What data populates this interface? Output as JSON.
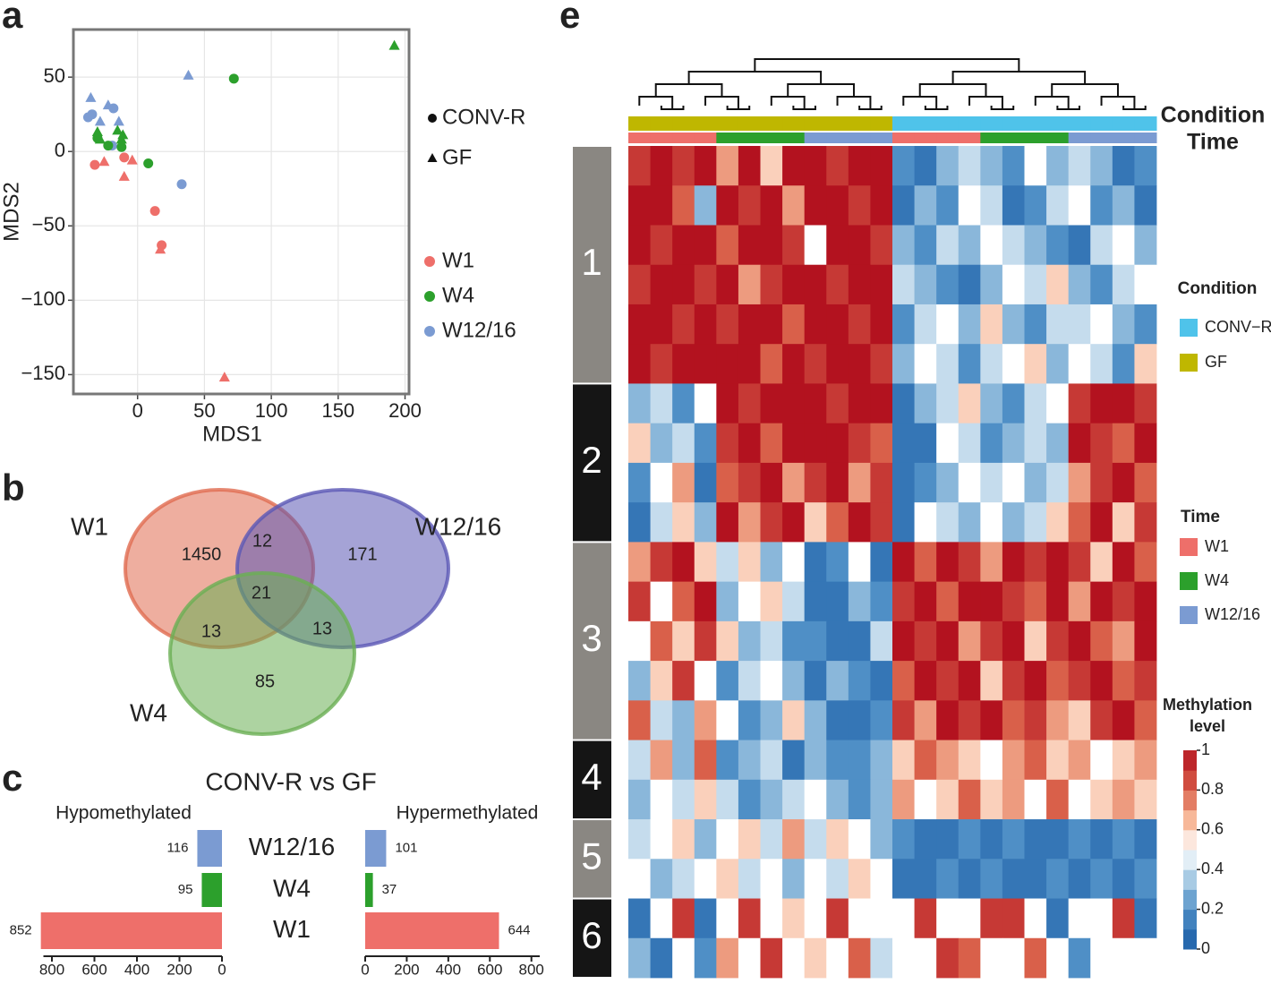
{
  "chart_data": [
    {
      "type": "scatter",
      "panel": "a",
      "xlabel": "MDS1",
      "ylabel": "MDS2",
      "xlim": [
        -48,
        203
      ],
      "ylim": [
        -163,
        82
      ],
      "xticks": [
        0,
        50,
        100,
        150,
        200
      ],
      "yticks": [
        {
          "value": -150,
          "label": "−150"
        },
        {
          "value": -100,
          "label": "−100"
        },
        {
          "value": -50,
          "label": "−50"
        },
        0,
        50
      ],
      "grid": true,
      "shape_legend": [
        {
          "name": "CONV-R",
          "shape": "circle"
        },
        {
          "name": "GF",
          "shape": "triangle"
        }
      ],
      "color_legend": [
        {
          "name": "W1",
          "color": "#ee6f6a"
        },
        {
          "name": "W4",
          "color": "#2ca02c"
        },
        {
          "name": "W12/16",
          "color": "#7b9bd2"
        }
      ],
      "points": {
        "x": [
          -35,
          -22,
          -28,
          -14,
          38,
          -37,
          -34,
          -18,
          -19,
          33,
          -30,
          -22,
          -12,
          8,
          72,
          -30,
          -28,
          -15,
          -11,
          -12,
          192,
          -32,
          -10,
          13,
          18,
          -25,
          -4,
          -10,
          17,
          65
        ],
        "y": [
          36,
          31,
          20,
          20,
          51,
          23,
          25,
          29,
          4,
          -22,
          9,
          4,
          3,
          -8,
          49,
          13,
          8,
          14,
          11,
          8,
          71,
          -9,
          -4,
          -40,
          -63,
          -7,
          -6,
          -17,
          -66,
          -152
        ],
        "shape": [
          1,
          1,
          1,
          1,
          1,
          0,
          0,
          0,
          0,
          0,
          0,
          0,
          0,
          0,
          0,
          1,
          1,
          1,
          1,
          1,
          1,
          0,
          0,
          0,
          0,
          1,
          1,
          1,
          1,
          1
        ],
        "color": [
          2,
          2,
          2,
          2,
          2,
          2,
          2,
          2,
          2,
          2,
          1,
          1,
          1,
          1,
          1,
          1,
          1,
          1,
          1,
          1,
          1,
          0,
          0,
          0,
          0,
          0,
          0,
          0,
          0,
          0
        ]
      }
    },
    {
      "type": "venn",
      "panel": "b",
      "sets": [
        {
          "name": "W1",
          "color": "#e06b50"
        },
        {
          "name": "W12/16",
          "color": "#5b57b5"
        },
        {
          "name": "W4",
          "color": "#6aaf54"
        }
      ],
      "regions": [
        {
          "sets": [
            0
          ],
          "value": 1450
        },
        {
          "sets": [
            0,
            1
          ],
          "value": 12
        },
        {
          "sets": [
            1
          ],
          "value": 171
        },
        {
          "sets": [
            0,
            1,
            2
          ],
          "value": 21
        },
        {
          "sets": [
            0,
            2
          ],
          "value": 13
        },
        {
          "sets": [
            1,
            2
          ],
          "value": 13
        },
        {
          "sets": [
            2
          ],
          "value": 85
        }
      ]
    },
    {
      "type": "bar",
      "panel": "c",
      "title": "CONV-R vs GF",
      "categories": [
        "W12/16",
        "W4",
        "W1"
      ],
      "colors": [
        "#7b9bd2",
        "#2ca02c",
        "#ee6f6a"
      ],
      "series": [
        {
          "name": "Hypomethylated",
          "values": [
            116,
            95,
            852
          ]
        },
        {
          "name": "Hypermethylated",
          "values": [
            101,
            37,
            644
          ]
        }
      ],
      "xlim": [
        0,
        840
      ],
      "xticks": [
        0,
        200,
        400,
        600,
        800
      ]
    },
    {
      "type": "heatmap",
      "panel": "e",
      "annotation_rows": [
        "Condition",
        "Time"
      ],
      "condition_legend": {
        "title": "Condition",
        "items": [
          {
            "name": "CONV−R",
            "color": "#4fc3ea"
          },
          {
            "name": "GF",
            "color": "#bfb700"
          }
        ]
      },
      "time_legend": {
        "title": "Time",
        "items": [
          {
            "name": "W1",
            "color": "#ee6f6a"
          },
          {
            "name": "W4",
            "color": "#2ca02c"
          },
          {
            "name": "W12/16",
            "color": "#7b9bd2"
          }
        ]
      },
      "colorbar": {
        "title": [
          "Methylation",
          "level"
        ],
        "ticks": [
          0,
          0.2,
          0.4,
          0.6,
          0.8,
          1
        ],
        "stops": [
          [
            0,
            "#1a5ca6"
          ],
          [
            0.2,
            "#4f8fc6"
          ],
          [
            0.35,
            "#a8cbe4"
          ],
          [
            0.5,
            "#ffffff"
          ],
          [
            0.65,
            "#f7b899"
          ],
          [
            0.8,
            "#d9604a"
          ],
          [
            1,
            "#b3121f"
          ]
        ]
      },
      "column_condition": [
        1,
        1,
        1,
        1,
        1,
        1,
        1,
        1,
        1,
        1,
        1,
        1,
        0,
        0,
        0,
        0,
        0,
        0,
        0,
        0,
        0,
        0,
        0,
        0
      ],
      "column_time": [
        0,
        0,
        0,
        0,
        1,
        1,
        1,
        1,
        2,
        2,
        2,
        2,
        0,
        0,
        0,
        0,
        1,
        1,
        1,
        1,
        2,
        2,
        2,
        2
      ],
      "clusters": [
        {
          "label": "1",
          "color": "#8a8782",
          "rows": [
            [
              0.9,
              1,
              0.9,
              1,
              0.7,
              1,
              0.6,
              1,
              1,
              0.9,
              1,
              1,
              0.2,
              0.1,
              0.3,
              0.4,
              0.3,
              0.2,
              0.5,
              0.3,
              0.4,
              0.3,
              0.1,
              0.2
            ],
            [
              1,
              1,
              0.8,
              0.3,
              1,
              0.9,
              1,
              0.7,
              1,
              1,
              0.9,
              1,
              0.1,
              0.3,
              0.2,
              0.5,
              0.4,
              0.1,
              0.2,
              0.4,
              0.5,
              0.2,
              0.3,
              0.1
            ],
            [
              1,
              0.9,
              1,
              1,
              0.8,
              1,
              1,
              0.9,
              0.5,
              1,
              1,
              0.9,
              0.3,
              0.2,
              0.4,
              0.3,
              0.5,
              0.4,
              0.3,
              0.2,
              0.1,
              0.4,
              0.5,
              0.3
            ],
            [
              0.9,
              1,
              1,
              0.9,
              1,
              0.7,
              0.9,
              1,
              1,
              0.9,
              1,
              1,
              0.4,
              0.3,
              0.2,
              0.1,
              0.3,
              0.5,
              0.4,
              0.6,
              0.3,
              0.2,
              0.4,
              0.5
            ],
            [
              1,
              1,
              0.9,
              1,
              0.9,
              1,
              1,
              0.8,
              1,
              1,
              0.9,
              1,
              0.2,
              0.4,
              0.5,
              0.3,
              0.6,
              0.3,
              0.2,
              0.4,
              0.4,
              0.5,
              0.3,
              0.2
            ],
            [
              1,
              0.9,
              1,
              1,
              1,
              1,
              0.8,
              1,
              0.9,
              1,
              1,
              0.9,
              0.3,
              0.5,
              0.4,
              0.2,
              0.4,
              0.5,
              0.6,
              0.3,
              0.5,
              0.4,
              0.2,
              0.6
            ]
          ]
        },
        {
          "label": "2",
          "color": "#151515",
          "rows": [
            [
              0.3,
              0.4,
              0.2,
              0.5,
              1,
              0.9,
              1,
              1,
              1,
              0.9,
              1,
              1,
              0.1,
              0.3,
              0.4,
              0.6,
              0.3,
              0.2,
              0.4,
              0.5,
              0.9,
              1,
              1,
              0.9
            ],
            [
              0.6,
              0.3,
              0.4,
              0.2,
              0.9,
              1,
              0.8,
              1,
              1,
              1,
              0.9,
              0.8,
              0.1,
              0.1,
              0.5,
              0.4,
              0.2,
              0.3,
              0.4,
              0.3,
              1,
              0.9,
              0.8,
              1
            ],
            [
              0.2,
              0.5,
              0.7,
              0.1,
              0.8,
              0.9,
              1,
              0.7,
              0.9,
              1,
              0.7,
              0.9,
              0.1,
              0.2,
              0.3,
              0.5,
              0.4,
              0.5,
              0.3,
              0.4,
              0.7,
              0.9,
              1,
              0.8
            ],
            [
              0.1,
              0.4,
              0.6,
              0.3,
              1,
              0.7,
              0.9,
              1,
              0.6,
              0.8,
              1,
              0.9,
              0.1,
              0.5,
              0.4,
              0.3,
              0.5,
              0.3,
              0.4,
              0.6,
              0.8,
              1,
              0.6,
              0.9
            ]
          ]
        },
        {
          "label": "3",
          "color": "#8a8782",
          "rows": [
            [
              0.7,
              0.9,
              1,
              0.6,
              0.4,
              0.6,
              0.3,
              0.5,
              0.1,
              0.2,
              0.5,
              0.1,
              1,
              0.8,
              1,
              0.9,
              0.7,
              1,
              0.9,
              1,
              0.9,
              0.6,
              1,
              0.8
            ],
            [
              0.9,
              0.5,
              0.8,
              1,
              0.3,
              0.5,
              0.6,
              0.4,
              0.1,
              0.1,
              0.3,
              0.2,
              0.9,
              1,
              0.8,
              1,
              1,
              0.9,
              0.8,
              1,
              0.7,
              1,
              0.9,
              1
            ],
            [
              0.5,
              0.8,
              0.6,
              0.9,
              0.6,
              0.3,
              0.4,
              0.2,
              0.2,
              0.1,
              0.1,
              0.4,
              1,
              0.9,
              1,
              0.7,
              0.9,
              1,
              0.6,
              0.9,
              1,
              0.8,
              0.7,
              1
            ],
            [
              0.3,
              0.6,
              0.9,
              0.5,
              0.2,
              0.4,
              0.5,
              0.3,
              0.1,
              0.3,
              0.2,
              0.1,
              0.8,
              1,
              0.9,
              1,
              0.6,
              0.9,
              1,
              0.8,
              0.9,
              1,
              0.8,
              0.9
            ],
            [
              0.8,
              0.4,
              0.3,
              0.7,
              0.5,
              0.2,
              0.3,
              0.6,
              0.3,
              0.1,
              0.1,
              0.2,
              0.9,
              0.7,
              1,
              0.9,
              1,
              0.8,
              0.9,
              0.7,
              0.6,
              0.9,
              1,
              0.8
            ]
          ]
        },
        {
          "label": "4",
          "color": "#151515",
          "rows": [
            [
              0.4,
              0.7,
              0.3,
              0.8,
              0.2,
              0.3,
              0.4,
              0.1,
              0.3,
              0.2,
              0.2,
              0.3,
              0.6,
              0.8,
              0.7,
              0.6,
              0.5,
              0.7,
              0.8,
              0.6,
              0.7,
              0.5,
              0.6,
              0.7
            ],
            [
              0.3,
              0.5,
              0.4,
              0.6,
              0.4,
              0.2,
              0.3,
              0.4,
              0.5,
              0.3,
              0.2,
              0.3,
              0.7,
              0.5,
              0.6,
              0.8,
              0.6,
              0.7,
              0.5,
              0.8,
              0.5,
              0.6,
              0.7,
              0.6
            ]
          ]
        },
        {
          "label": "5",
          "color": "#8a8782",
          "rows": [
            [
              0.4,
              0.5,
              0.6,
              0.3,
              0.5,
              0.6,
              0.4,
              0.7,
              0.4,
              0.6,
              0.5,
              0.3,
              0.2,
              0.1,
              0.1,
              0.2,
              0.1,
              0.2,
              0.1,
              0.1,
              0.2,
              0.1,
              0.2,
              0.1
            ],
            [
              0.5,
              0.3,
              0.4,
              0.5,
              0.6,
              0.4,
              0.5,
              0.3,
              0.5,
              0.4,
              0.6,
              0.5,
              0.1,
              0.1,
              0.2,
              0.1,
              0.2,
              0.1,
              0.1,
              0.2,
              0.1,
              0.2,
              0.1,
              0.2
            ]
          ]
        },
        {
          "label": "6",
          "color": "#151515",
          "rows": [
            [
              0.1,
              0.5,
              0.9,
              0.1,
              0.5,
              0.9,
              0.5,
              0.6,
              0.5,
              0.9,
              0.5,
              0.5,
              0.5,
              0.9,
              0.5,
              0.5,
              0.9,
              0.9,
              0.5,
              0.1,
              0.5,
              0.5,
              0.9,
              0.1
            ],
            [
              0.3,
              0.1,
              0.5,
              0.2,
              0.7,
              0.5,
              0.9,
              0.5,
              0.6,
              0.5,
              0.8,
              0.4,
              0.5,
              0.5,
              0.9,
              0.8,
              0.5,
              0.5,
              0.8,
              0.5,
              0.2,
              0.5,
              0.5,
              0.5
            ]
          ]
        }
      ]
    }
  ]
}
